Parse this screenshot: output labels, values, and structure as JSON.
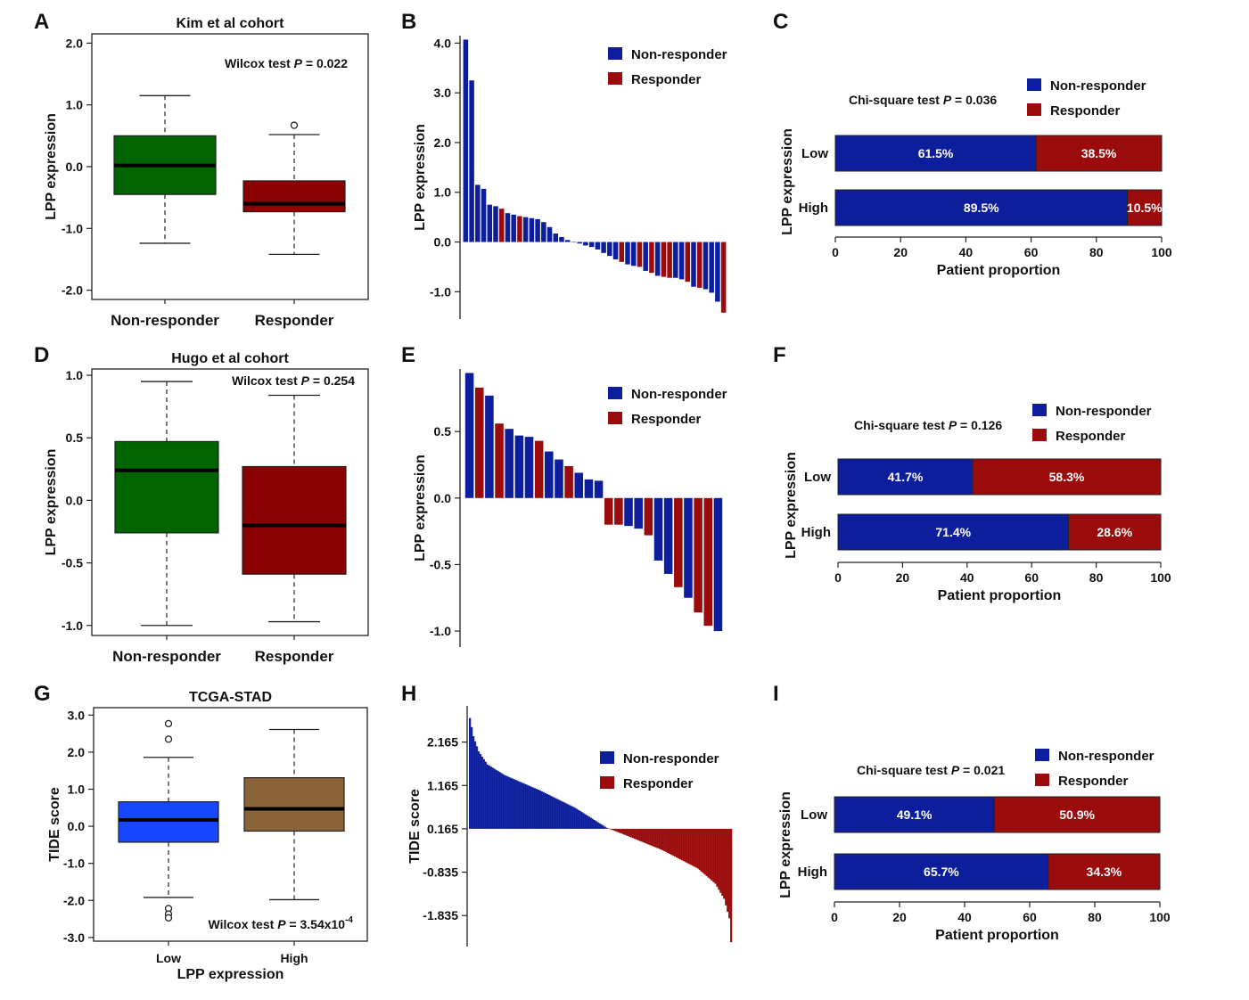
{
  "colors": {
    "nonresponder": "#0d1e9c",
    "responder": "#9b0b0b",
    "green": "#006400",
    "darkred": "#8b0000",
    "blue": "#1447ff",
    "brown": "#8c6239"
  },
  "chart_data": [
    {
      "panel": "A",
      "type": "box",
      "title": "Kim et al cohort",
      "ylabel": "LPP expression",
      "ylim": [
        -2.15,
        2.15
      ],
      "yticks": [
        2.0,
        1.0,
        0.0,
        -1.0,
        -2.0
      ],
      "ytick_labels": [
        "2.0",
        "1.0",
        "0.0",
        "-1.0",
        "-2.0"
      ],
      "stat": {
        "prefix": "Wilcox test ",
        "p": "P",
        "suffix": " =  0.022"
      },
      "categories": [
        "Non-responder",
        "Responder"
      ],
      "boxes": [
        {
          "label": "Non-responder",
          "whisker_low": -1.24,
          "q1": -0.45,
          "median": 0.02,
          "q3": 0.5,
          "whisker_high": 1.15,
          "outliers": [],
          "color": "green"
        },
        {
          "label": "Responder",
          "whisker_low": -1.42,
          "q1": -0.73,
          "median": -0.6,
          "q3": -0.23,
          "whisker_high": 0.52,
          "outliers": [
            0.67
          ],
          "color": "darkred"
        }
      ]
    },
    {
      "panel": "B",
      "type": "bar",
      "ylabel": "LPP expression",
      "ylim": [
        -1.55,
        4.15
      ],
      "yticks": [
        4.0,
        3.0,
        2.0,
        1.0,
        0.0,
        -1.0
      ],
      "ytick_labels": [
        "4.0",
        "3.0",
        "2.0",
        "1.0",
        "0.0",
        "-1.0"
      ],
      "legend": [
        "Non-responder",
        "Responder"
      ],
      "values": [
        4.07,
        3.25,
        1.15,
        1.07,
        0.75,
        0.72,
        0.67,
        0.58,
        0.55,
        0.52,
        0.5,
        0.48,
        0.46,
        0.4,
        0.3,
        0.17,
        0.1,
        0.04,
        0.0,
        -0.03,
        -0.07,
        -0.1,
        -0.15,
        -0.22,
        -0.28,
        -0.35,
        -0.4,
        -0.45,
        -0.48,
        -0.5,
        -0.58,
        -0.62,
        -0.68,
        -0.7,
        -0.72,
        -0.72,
        -0.75,
        -0.8,
        -0.9,
        -0.92,
        -0.95,
        -1.02,
        -1.2,
        -1.42
      ],
      "groups": [
        "N",
        "N",
        "N",
        "N",
        "N",
        "N",
        "R",
        "N",
        "N",
        "R",
        "N",
        "N",
        "N",
        "N",
        "N",
        "N",
        "N",
        "N",
        "N",
        "N",
        "N",
        "N",
        "N",
        "N",
        "N",
        "N",
        "R",
        "N",
        "N",
        "R",
        "N",
        "R",
        "N",
        "R",
        "R",
        "N",
        "N",
        "R",
        "N",
        "R",
        "N",
        "N",
        "N",
        "R"
      ]
    },
    {
      "panel": "C",
      "type": "stacked-bar-horizontal",
      "stat": {
        "prefix": "Chi-square test ",
        "p": "P",
        "suffix": " = 0.036"
      },
      "ylabel": "LPP expression",
      "xlabel": "Patient proportion",
      "xticks": [
        "0",
        "20",
        "40",
        "60",
        "80",
        "100"
      ],
      "legend": [
        "Non-responder",
        "Responder"
      ],
      "categories": [
        "Low",
        "High"
      ],
      "nonresponder": [
        61.5,
        89.5
      ],
      "responder": [
        38.5,
        10.5
      ],
      "labels_nonresponder": [
        "61.5%",
        "89.5%"
      ],
      "labels_responder": [
        "38.5%",
        "10.5%"
      ]
    },
    {
      "panel": "D",
      "type": "box",
      "title": "Hugo et al cohort",
      "ylabel": "LPP expression",
      "ylim": [
        -1.08,
        1.05
      ],
      "yticks": [
        1.0,
        0.5,
        0.0,
        -0.5,
        -1.0
      ],
      "ytick_labels": [
        "1.0",
        "0.5",
        "0.0",
        "-0.5",
        "-1.0"
      ],
      "stat": {
        "prefix": "Wilcox test ",
        "p": "P",
        "suffix": " =  0.254"
      },
      "categories": [
        "Non-responder",
        "Responder"
      ],
      "boxes": [
        {
          "label": "Non-responder",
          "whisker_low": -1.0,
          "q1": -0.26,
          "median": 0.24,
          "q3": 0.47,
          "whisker_high": 0.95,
          "outliers": [],
          "color": "green"
        },
        {
          "label": "Responder",
          "whisker_low": -0.97,
          "q1": -0.59,
          "median": -0.2,
          "q3": 0.27,
          "whisker_high": 0.84,
          "outliers": [],
          "color": "darkred"
        }
      ]
    },
    {
      "panel": "E",
      "type": "bar",
      "ylabel": "LPP expression",
      "ylim": [
        -1.12,
        0.97
      ],
      "yticks": [
        0.5,
        0.0,
        -0.5,
        -1.0
      ],
      "ytick_labels": [
        "0.5",
        "0.0",
        "-0.5",
        "-1.0"
      ],
      "legend": [
        "Non-responder",
        "Responder"
      ],
      "values": [
        0.94,
        0.83,
        0.77,
        0.56,
        0.52,
        0.47,
        0.46,
        0.43,
        0.35,
        0.29,
        0.24,
        0.19,
        0.14,
        0.13,
        -0.2,
        -0.2,
        -0.21,
        -0.23,
        -0.28,
        -0.47,
        -0.57,
        -0.67,
        -0.75,
        -0.86,
        -0.96,
        -1.0
      ],
      "groups": [
        "N",
        "R",
        "N",
        "R",
        "N",
        "N",
        "N",
        "R",
        "N",
        "N",
        "R",
        "N",
        "N",
        "N",
        "R",
        "R",
        "N",
        "N",
        "R",
        "N",
        "N",
        "R",
        "N",
        "R",
        "R",
        "N"
      ]
    },
    {
      "panel": "F",
      "type": "stacked-bar-horizontal",
      "stat": {
        "prefix": "Chi-square test ",
        "p": "P",
        "suffix": " = 0.126"
      },
      "ylabel": "LPP expression",
      "xlabel": "Patient proportion",
      "xticks": [
        "0",
        "20",
        "40",
        "60",
        "80",
        "100"
      ],
      "legend": [
        "Non-responder",
        "Responder"
      ],
      "categories": [
        "Low",
        "High"
      ],
      "nonresponder": [
        41.7,
        71.4
      ],
      "responder": [
        58.3,
        28.6
      ],
      "labels_nonresponder": [
        "41.7%",
        "71.4%"
      ],
      "labels_responder": [
        "58.3%",
        "28.6%"
      ]
    },
    {
      "panel": "G",
      "type": "box",
      "title": "TCGA-STAD",
      "ylabel": "TIDE score",
      "xlabel": "LPP expression",
      "ylim": [
        -3.1,
        3.2
      ],
      "yticks": [
        3.0,
        2.0,
        1.0,
        0.0,
        -1.0,
        -2.0,
        -3.0
      ],
      "ytick_labels": [
        "3.0",
        "2.0",
        "1.0",
        "0.0",
        "-1.0",
        "-2.0",
        "-3.0"
      ],
      "stat": {
        "prefix": "Wilcox test ",
        "p": "P",
        "suffix": " = 3.54x10",
        "exp": "-4"
      },
      "categories": [
        "Low",
        "High"
      ],
      "boxes": [
        {
          "label": "Low",
          "whisker_low": -1.92,
          "q1": -0.43,
          "median": 0.17,
          "q3": 0.66,
          "whisker_high": 1.86,
          "outliers": [
            2.77,
            2.35,
            -2.22,
            -2.37,
            -2.47
          ],
          "color": "blue"
        },
        {
          "label": "High",
          "whisker_low": -1.98,
          "q1": -0.13,
          "median": 0.47,
          "q3": 1.31,
          "whisker_high": 2.61,
          "outliers": [],
          "color": "brown"
        }
      ]
    },
    {
      "panel": "H",
      "type": "bar",
      "ylabel": "TIDE  score",
      "ylim": [
        -2.55,
        3.0
      ],
      "yticks": [
        2.165,
        1.165,
        0.165,
        -0.835,
        -1.835
      ],
      "ytick_labels": [
        "2.165",
        "1.165",
        "0.165",
        "-0.835",
        "-1.835"
      ],
      "baseline": 0.165,
      "legend": [
        "Non-responder",
        "Responder"
      ],
      "n_bars": 150,
      "split_index": 78,
      "profile": [
        [
          0,
          2.72
        ],
        [
          2,
          2.3
        ],
        [
          5,
          1.95
        ],
        [
          10,
          1.65
        ],
        [
          20,
          1.4
        ],
        [
          40,
          1.05
        ],
        [
          60,
          0.65
        ],
        [
          78,
          0.19
        ],
        [
          90,
          0.0
        ],
        [
          110,
          -0.33
        ],
        [
          130,
          -0.75
        ],
        [
          140,
          -1.1
        ],
        [
          145,
          -1.45
        ],
        [
          148,
          -1.9
        ],
        [
          149,
          -2.45
        ]
      ]
    },
    {
      "panel": "I",
      "type": "stacked-bar-horizontal",
      "stat": {
        "prefix": "Chi-square test ",
        "p": "P",
        "suffix": " = 0.021"
      },
      "ylabel": "LPP expression",
      "xlabel": "Patient proportion",
      "xticks": [
        "0",
        "20",
        "40",
        "60",
        "80",
        "100"
      ],
      "legend": [
        "Non-responder",
        "Responder"
      ],
      "categories": [
        "Low",
        "High"
      ],
      "nonresponder": [
        49.1,
        65.7
      ],
      "responder": [
        50.9,
        34.3
      ],
      "labels_nonresponder": [
        "49.1%",
        "65.7%"
      ],
      "labels_responder": [
        "50.9%",
        "34.3%"
      ]
    }
  ]
}
